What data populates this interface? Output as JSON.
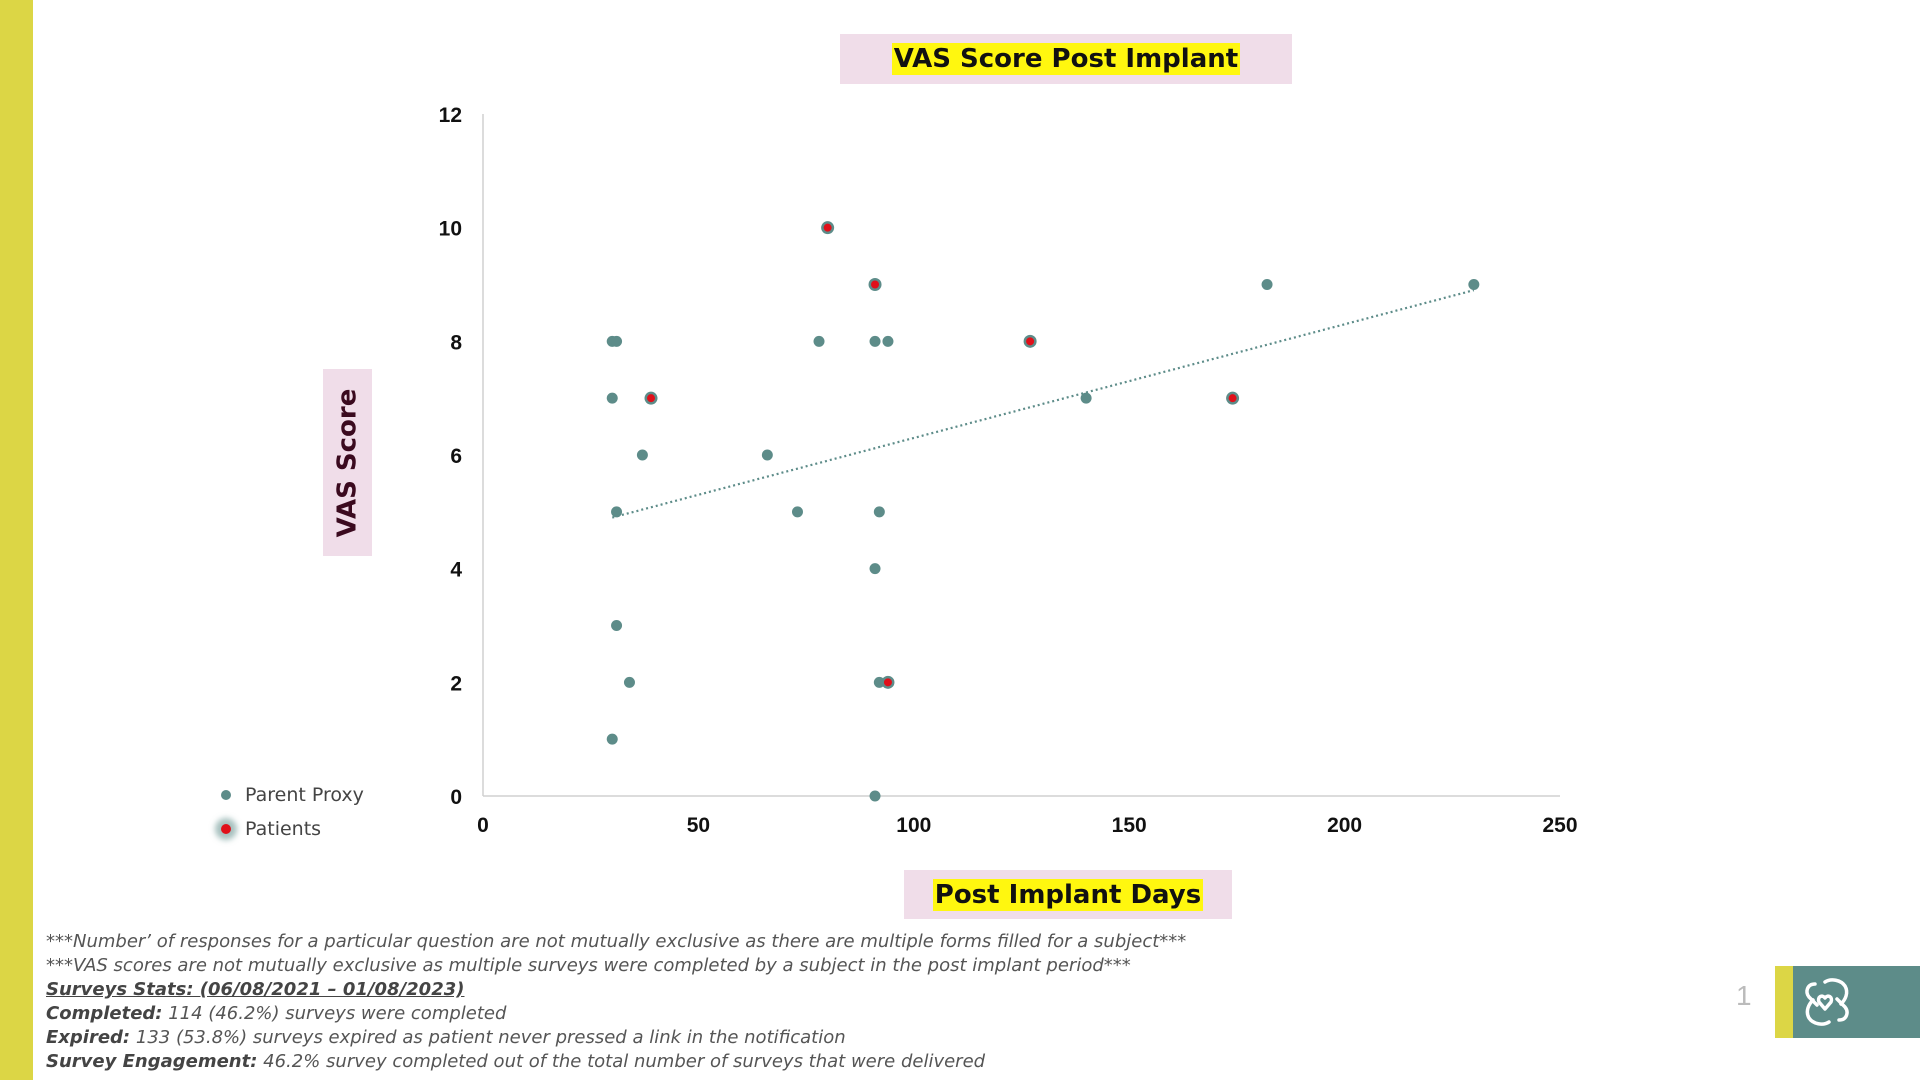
{
  "colors": {
    "accent_bar": "#dcd645",
    "parent_proxy": "#5d8c89",
    "patients": "#e0101a",
    "label_bg": "#f0dde9",
    "highlight": "#fff70f"
  },
  "chart_data": {
    "type": "scatter",
    "title": "VAS Score Post Implant",
    "xlabel": "Post Implant Days",
    "ylabel": "VAS Score",
    "xlim": [
      0,
      250
    ],
    "ylim": [
      0,
      12
    ],
    "xticks": [
      "0",
      "50",
      "100",
      "150",
      "200",
      "250"
    ],
    "yticks": [
      "0",
      "2",
      "4",
      "6",
      "8",
      "10",
      "12"
    ],
    "legend_position": "bottom-left",
    "series": [
      {
        "name": "Parent Proxy",
        "points": [
          [
            30,
            8
          ],
          [
            31,
            8
          ],
          [
            30,
            7
          ],
          [
            37,
            6
          ],
          [
            31,
            5
          ],
          [
            31,
            3
          ],
          [
            34,
            2
          ],
          [
            30,
            1
          ],
          [
            66,
            6
          ],
          [
            73,
            5
          ],
          [
            78,
            8
          ],
          [
            91,
            8
          ],
          [
            94,
            8
          ],
          [
            92,
            5
          ],
          [
            91,
            4
          ],
          [
            92,
            2
          ],
          [
            91,
            0
          ],
          [
            140,
            7
          ],
          [
            182,
            9
          ],
          [
            230,
            9
          ]
        ]
      },
      {
        "name": "Patients",
        "points": [
          [
            80,
            10
          ],
          [
            91,
            9
          ],
          [
            39,
            7
          ],
          [
            127,
            8
          ],
          [
            174,
            7
          ],
          [
            94,
            2
          ]
        ]
      }
    ],
    "trendline": {
      "style": "dotted",
      "from": [
        30,
        4.9
      ],
      "to": [
        230,
        8.9
      ]
    }
  },
  "legend": {
    "parent_proxy": "Parent Proxy",
    "patients": "Patients"
  },
  "notes": {
    "line1": "***Number’ of responses for a particular question are not mutually exclusive as there are multiple forms filled for a subject***",
    "line2": "***VAS scores are not mutually exclusive as multiple surveys were completed by a subject in the post implant period***",
    "stats_heading": "Surveys Stats: (06/08/2021 – 01/08/2023)",
    "completed_label": "Completed:",
    "completed_text": " 114 (46.2%) surveys were completed",
    "expired_label": "Expired:",
    "expired_text": " 133 (53.8%) surveys expired as patient never pressed a link in the notification",
    "engagement_label": "Survey Engagement:",
    "engagement_text": " 46.2% survey completed out of the total number of surveys that were delivered"
  },
  "page_number": "1",
  "logo_icon": "heart-link-icon"
}
